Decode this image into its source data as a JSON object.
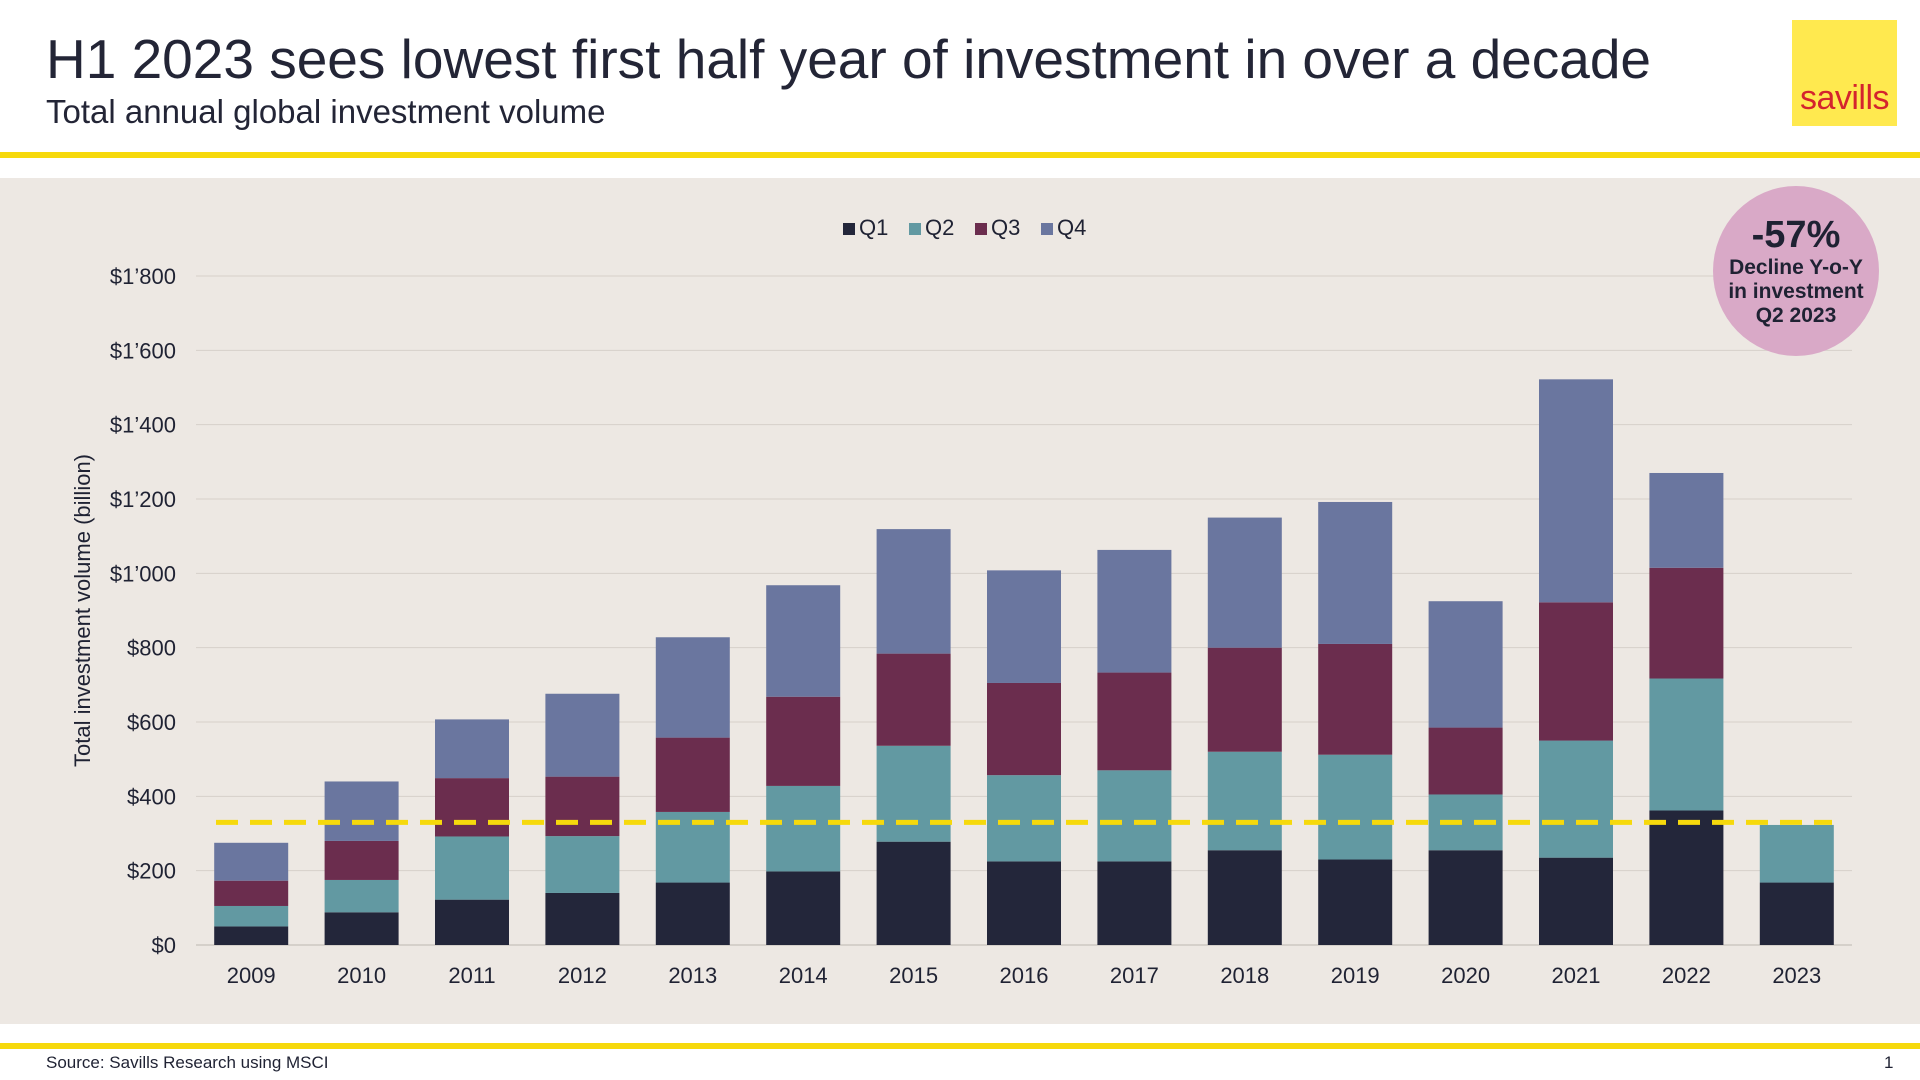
{
  "header": {
    "title": "H1 2023 sees lowest first half year of investment in over a decade",
    "subtitle": "Total annual global investment volume",
    "logo_text": "savills"
  },
  "callout": {
    "value": "-57%",
    "line1": "Decline Y-o-Y",
    "line2": "in investment",
    "line3": "Q2 2023"
  },
  "footer": {
    "source": "Source: Savills Research using MSCI",
    "page_number": "1"
  },
  "colors": {
    "Q1": "#23263a",
    "Q2": "#6299a2",
    "Q3": "#6b2d4e",
    "Q4": "#6a769f",
    "reference_line": "#f6d90c",
    "callout": "#d9a9c7"
  },
  "chart_data": {
    "type": "bar",
    "stacked": true,
    "categories": [
      "2009",
      "2010",
      "2011",
      "2012",
      "2013",
      "2014",
      "2015",
      "2016",
      "2017",
      "2018",
      "2019",
      "2020",
      "2021",
      "2022",
      "2023"
    ],
    "series": [
      {
        "name": "Q1",
        "values": [
          50,
          88,
          122,
          140,
          168,
          198,
          278,
          225,
          225,
          255,
          230,
          255,
          235,
          362,
          168
        ]
      },
      {
        "name": "Q2",
        "values": [
          55,
          87,
          170,
          153,
          190,
          230,
          258,
          232,
          245,
          265,
          282,
          150,
          315,
          355,
          155
        ]
      },
      {
        "name": "Q3",
        "values": [
          68,
          105,
          157,
          160,
          200,
          240,
          248,
          248,
          263,
          280,
          298,
          180,
          372,
          298,
          0
        ]
      },
      {
        "name": "Q4",
        "values": [
          102,
          160,
          158,
          223,
          270,
          300,
          335,
          303,
          330,
          350,
          382,
          340,
          600,
          255,
          0
        ]
      }
    ],
    "ylabel": "Total investment volume (billion)",
    "ylim": [
      0,
      1800
    ],
    "yticks": [
      0,
      200,
      400,
      600,
      800,
      1000,
      1200,
      1400,
      1600,
      1800
    ],
    "ytick_labels": [
      "$0",
      "$200",
      "$400",
      "$600",
      "$800",
      "$1’000",
      "$1’200",
      "$1’400",
      "$1’600",
      "$1’800"
    ],
    "reference_line": {
      "value": 330,
      "style": "dashed"
    },
    "grid": true,
    "legend": "top-center"
  }
}
